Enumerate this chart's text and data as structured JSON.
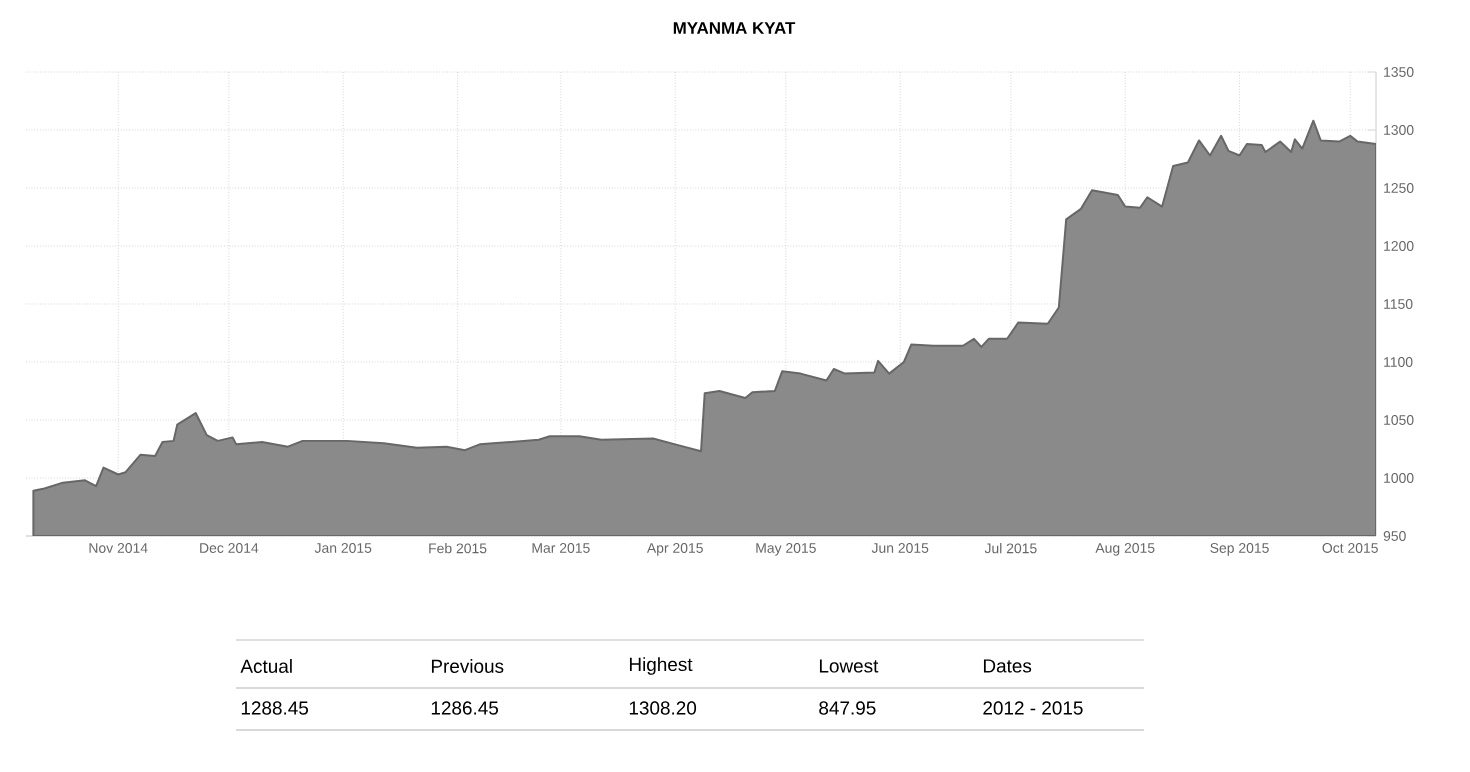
{
  "chart_data": {
    "type": "area",
    "title": "MYANMA KYAT",
    "x": [
      "2014-10-09",
      "2014-10-12",
      "2014-10-17",
      "2014-10-23",
      "2014-10-26",
      "2014-10-28",
      "2014-11-01",
      "2014-11-03",
      "2014-11-07",
      "2014-11-11",
      "2014-11-13",
      "2014-11-16",
      "2014-11-17",
      "2014-11-20",
      "2014-11-22",
      "2014-11-25",
      "2014-11-28",
      "2014-12-02",
      "2014-12-03",
      "2014-12-10",
      "2014-12-17",
      "2014-12-21",
      "2015-01-02",
      "2015-01-12",
      "2015-01-21",
      "2015-01-29",
      "2015-02-03",
      "2015-02-07",
      "2015-02-23",
      "2015-02-26",
      "2015-03-06",
      "2015-03-12",
      "2015-03-26",
      "2015-04-01",
      "2015-04-08",
      "2015-04-09",
      "2015-04-13",
      "2015-04-20",
      "2015-04-22",
      "2015-04-28",
      "2015-04-30",
      "2015-05-05",
      "2015-05-12",
      "2015-05-14",
      "2015-05-17",
      "2015-05-25",
      "2015-05-26",
      "2015-05-29",
      "2015-06-02",
      "2015-06-04",
      "2015-06-10",
      "2015-06-18",
      "2015-06-21",
      "2015-06-23",
      "2015-06-25",
      "2015-06-30",
      "2015-07-03",
      "2015-07-11",
      "2015-07-14",
      "2015-07-16",
      "2015-07-20",
      "2015-07-23",
      "2015-07-30",
      "2015-08-01",
      "2015-08-05",
      "2015-08-07",
      "2015-08-11",
      "2015-08-14",
      "2015-08-18",
      "2015-08-21",
      "2015-08-24",
      "2015-08-27",
      "2015-08-29",
      "2015-09-01",
      "2015-09-03",
      "2015-09-07",
      "2015-09-08",
      "2015-09-12",
      "2015-09-15",
      "2015-09-16",
      "2015-09-18",
      "2015-09-21",
      "2015-09-23",
      "2015-09-28",
      "2015-10-01",
      "2015-10-03",
      "2015-10-08"
    ],
    "series": [
      {
        "color": "#8a8a8a",
        "values": [
          989,
          991,
          996,
          998,
          993,
          1009,
          1003,
          1005,
          1020,
          1019,
          1031,
          1032,
          1046,
          1052,
          1056,
          1037,
          1032,
          1035,
          1029,
          1031,
          1027,
          1032,
          1032,
          1030,
          1026,
          1027,
          1024,
          1029,
          1033,
          1036,
          1036,
          1033,
          1034,
          1029,
          1023,
          1073,
          1075,
          1069,
          1074,
          1075,
          1092,
          1090,
          1084,
          1094,
          1090,
          1091,
          1101,
          1090,
          1100,
          1115,
          1114,
          1114,
          1120,
          1113,
          1120,
          1120,
          1134,
          1133,
          1147,
          1223,
          1232,
          1248,
          1244,
          1234,
          1233,
          1242,
          1234,
          1269,
          1272,
          1291,
          1278,
          1295,
          1282,
          1278,
          1288,
          1287,
          1281,
          1290,
          1281,
          1292,
          1284,
          1308,
          1291,
          1290,
          1295,
          1290,
          1288
        ]
      }
    ],
    "xlim": [
      "2014-10-07",
      "2015-10-08"
    ],
    "xticks": [
      {
        "value": "2014-11-01",
        "label": "Nov 2014"
      },
      {
        "value": "2014-12-01",
        "label": "Dec 2014"
      },
      {
        "value": "2015-01-01",
        "label": "Jan 2015"
      },
      {
        "value": "2015-02-01",
        "label": "Feb 2015"
      },
      {
        "value": "2015-03-01",
        "label": "Mar 2015"
      },
      {
        "value": "2015-04-01",
        "label": "Apr 2015"
      },
      {
        "value": "2015-05-01",
        "label": "May 2015"
      },
      {
        "value": "2015-06-01",
        "label": "Jun 2015"
      },
      {
        "value": "2015-07-01",
        "label": "Jul 2015"
      },
      {
        "value": "2015-08-01",
        "label": "Aug 2015"
      },
      {
        "value": "2015-09-01",
        "label": "Sep 2015"
      },
      {
        "value": "2015-10-01",
        "label": "Oct 2015"
      }
    ],
    "ylim": [
      950,
      1350
    ],
    "yticks": [
      950,
      1000,
      1050,
      1100,
      1150,
      1200,
      1250,
      1300,
      1350
    ],
    "grid": true,
    "annotations": [
      "Actual",
      "Previous",
      "Highest",
      "Lowest",
      "Dates",
      "1288.45",
      "1286.45",
      "1308.20",
      "847.95",
      "2012 - 2015"
    ]
  }
}
